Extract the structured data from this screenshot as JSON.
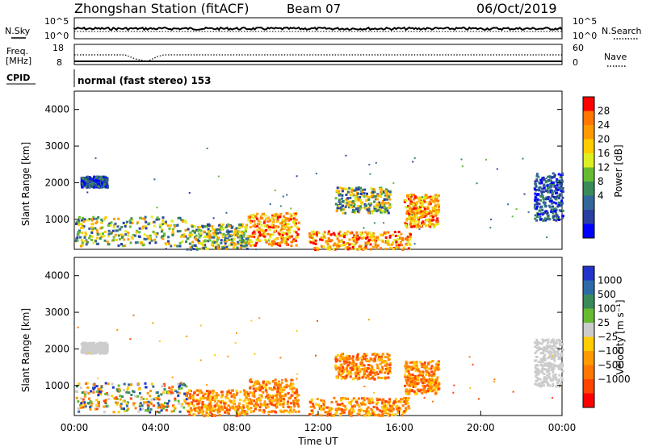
{
  "header": {
    "station": "Zhongshan Station (fitACF)",
    "beam": "Beam 07",
    "date": "06/Oct/2019"
  },
  "top_panels": {
    "nsky_label": "N.Sky",
    "nsky_ticks": [
      "10^5",
      "10^0"
    ],
    "nsearch_label": "N.Search",
    "nsearch_ticks": [
      "10^5",
      "10^0"
    ],
    "freq_label": "Freq.",
    "freq_unit": "[MHz]",
    "freq_ticks": [
      "18",
      "8"
    ],
    "nave_label": "Nave",
    "nave_ticks": [
      "60",
      "0"
    ],
    "cpid_label": "CPID",
    "cpid_value": "normal (fast stereo) 153"
  },
  "chart_data": [
    {
      "type": "heatmap",
      "name": "power",
      "ylabel": "Slant Range [km]",
      "xlabel": "",
      "xlim": [
        "00:00",
        "24:00"
      ],
      "ylim": [
        180,
        4500
      ],
      "y_ticks": [
        "1000",
        "2000",
        "3000",
        "4000"
      ],
      "colorbar": {
        "label": "Power [dB]",
        "ticks": [
          "28",
          "24",
          "20",
          "16",
          "12",
          "8",
          "4"
        ],
        "colors": [
          "#ff0000",
          "#ff7700",
          "#ff9900",
          "#ffcc00",
          "#ddee22",
          "#66bb33",
          "#3a8a5a",
          "#336699",
          "#2a3fa0",
          "#0000ff"
        ]
      },
      "echo_regions": [
        {
          "t": [
            0.3,
            1.6
          ],
          "r": [
            1900,
            2200
          ],
          "level": "low"
        },
        {
          "t": [
            0.0,
            5.5
          ],
          "r": [
            300,
            1100
          ],
          "level": "mid"
        },
        {
          "t": [
            5.5,
            8.5
          ],
          "r": [
            200,
            900
          ],
          "level": "mid"
        },
        {
          "t": [
            8.5,
            11.0
          ],
          "r": [
            300,
            1200
          ],
          "level": "high"
        },
        {
          "t": [
            11.5,
            16.5
          ],
          "r": [
            200,
            700
          ],
          "level": "high"
        },
        {
          "t": [
            12.8,
            15.5
          ],
          "r": [
            1200,
            1900
          ],
          "level": "mid"
        },
        {
          "t": [
            16.2,
            17.9
          ],
          "r": [
            800,
            1700
          ],
          "level": "high"
        },
        {
          "t": [
            22.6,
            24.0
          ],
          "r": [
            1000,
            2300
          ],
          "level": "low"
        }
      ]
    },
    {
      "type": "heatmap",
      "name": "velocity",
      "ylabel": "Slant Range [km]",
      "xlabel": "Time UT",
      "xlim": [
        "00:00",
        "24:00"
      ],
      "ylim": [
        180,
        4500
      ],
      "y_ticks": [
        "1000",
        "2000",
        "3000",
        "4000"
      ],
      "x_ticks": [
        "00:00",
        "04:00",
        "08:00",
        "12:00",
        "16:00",
        "20:00",
        "00:00"
      ],
      "colorbar": {
        "label": "Velocity [m s⁻¹]",
        "ticks": [
          "1000",
          "500",
          "100",
          "25",
          "−25",
          "−100",
          "−500",
          "−1000"
        ],
        "colors": [
          "#2233cc",
          "#2f6aa8",
          "#3a8a5a",
          "#66bb33",
          "#cccccc",
          "#ffcc00",
          "#ff9900",
          "#ff7700",
          "#ff4400",
          "#ff0000"
        ]
      },
      "echo_regions": [
        {
          "t": [
            0.3,
            1.6
          ],
          "r": [
            1900,
            2200
          ],
          "level": "gray"
        },
        {
          "t": [
            0.0,
            5.5
          ],
          "r": [
            300,
            1100
          ],
          "level": "mixed"
        },
        {
          "t": [
            5.5,
            8.5
          ],
          "r": [
            200,
            900
          ],
          "level": "neg"
        },
        {
          "t": [
            8.5,
            11.0
          ],
          "r": [
            300,
            1200
          ],
          "level": "neg"
        },
        {
          "t": [
            11.5,
            16.5
          ],
          "r": [
            200,
            700
          ],
          "level": "neg"
        },
        {
          "t": [
            12.8,
            15.5
          ],
          "r": [
            1200,
            1900
          ],
          "level": "neg"
        },
        {
          "t": [
            16.2,
            17.9
          ],
          "r": [
            800,
            1700
          ],
          "level": "neg"
        },
        {
          "t": [
            22.6,
            24.0
          ],
          "r": [
            1000,
            2300
          ],
          "level": "gray"
        }
      ]
    }
  ]
}
